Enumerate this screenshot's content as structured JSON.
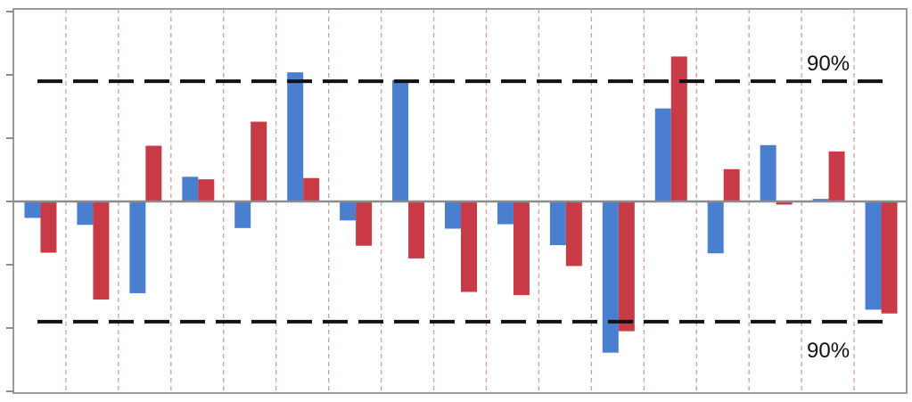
{
  "chart_data": {
    "type": "bar",
    "title": "",
    "xlabel": "",
    "ylabel": "",
    "ylim": [
      -3,
      3
    ],
    "grid": {
      "vertical": true,
      "horizontal": false
    },
    "legend": "none",
    "categories": [
      "",
      "",
      "",
      "",
      "",
      "",
      "",
      "",
      "",
      "",
      "",
      "",
      "",
      "",
      "",
      "",
      ""
    ],
    "series": [
      {
        "color": "#4a7fd0",
        "values": [
          -0.26,
          -0.37,
          -1.45,
          0.39,
          -0.42,
          2.04,
          -0.3,
          1.92,
          -0.43,
          -0.36,
          -0.69,
          -2.39,
          1.47,
          -0.82,
          0.89,
          0.04,
          -1.71
        ]
      },
      {
        "color": "#c73a46",
        "values": [
          -0.81,
          -1.55,
          0.88,
          0.35,
          1.26,
          0.37,
          -0.7,
          -0.9,
          -1.43,
          -1.48,
          -1.02,
          -2.05,
          2.29,
          0.51,
          -0.05,
          0.79,
          -1.77
        ]
      }
    ],
    "reference_lines": [
      {
        "value": 1.9,
        "label": "90%"
      },
      {
        "value": -1.9,
        "label": "90%"
      }
    ]
  }
}
